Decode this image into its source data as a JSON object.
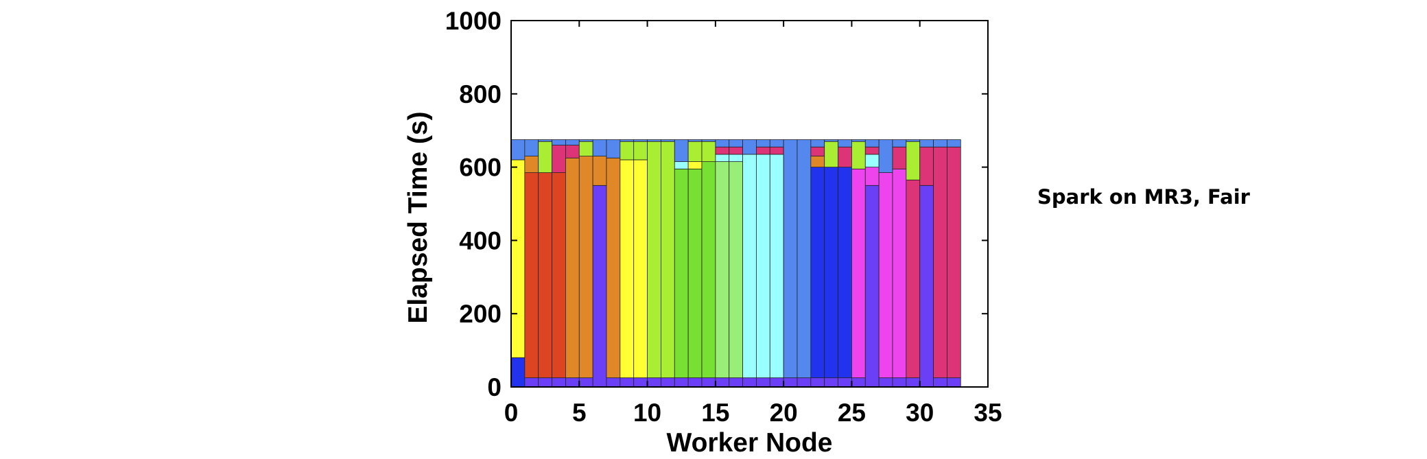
{
  "side_label": "Spark on MR3, Fair",
  "chart_data": {
    "type": "bar",
    "stacked": true,
    "xlabel": "Worker Node",
    "ylabel": "Elapsed Time (s)",
    "xlim": [
      0,
      35
    ],
    "ylim": [
      0,
      1000
    ],
    "xticks": [
      0,
      5,
      10,
      15,
      20,
      25,
      30,
      35
    ],
    "yticks": [
      0,
      200,
      400,
      600,
      800,
      1000
    ],
    "grid": false,
    "bar_width": 1,
    "colors": {
      "blue": "#2233ee",
      "violet": "#6a3ff5",
      "yellow": "#ffff33",
      "red": "#dd4422",
      "orange": "#e08828",
      "lime": "#aaee33",
      "green": "#77e033",
      "lightgreen": "#99ee77",
      "cyan": "#99ffff",
      "magenta": "#ee44ee",
      "pink": "#dd3377",
      "skyblue": "#5588ee"
    },
    "stacks": [
      {
        "x": 0.5,
        "segments": [
          {
            "c": "blue",
            "v": 80
          },
          {
            "c": "yellow",
            "v": 540
          },
          {
            "c": "skyblue",
            "v": 55
          }
        ]
      },
      {
        "x": 1.5,
        "segments": [
          {
            "c": "violet",
            "v": 25
          },
          {
            "c": "red",
            "v": 560
          },
          {
            "c": "orange",
            "v": 45
          },
          {
            "c": "skyblue",
            "v": 45
          }
        ]
      },
      {
        "x": 2.5,
        "segments": [
          {
            "c": "violet",
            "v": 25
          },
          {
            "c": "red",
            "v": 560
          },
          {
            "c": "lime",
            "v": 85
          },
          {
            "c": "skyblue",
            "v": 5
          }
        ]
      },
      {
        "x": 3.5,
        "segments": [
          {
            "c": "violet",
            "v": 25
          },
          {
            "c": "red",
            "v": 560
          },
          {
            "c": "pink",
            "v": 75
          },
          {
            "c": "skyblue",
            "v": 15
          }
        ]
      },
      {
        "x": 4.5,
        "segments": [
          {
            "c": "violet",
            "v": 25
          },
          {
            "c": "orange",
            "v": 600
          },
          {
            "c": "pink",
            "v": 35
          },
          {
            "c": "skyblue",
            "v": 15
          }
        ]
      },
      {
        "x": 5.5,
        "segments": [
          {
            "c": "violet",
            "v": 25
          },
          {
            "c": "orange",
            "v": 605
          },
          {
            "c": "lime",
            "v": 40
          },
          {
            "c": "skyblue",
            "v": 5
          }
        ]
      },
      {
        "x": 6.5,
        "segments": [
          {
            "c": "violet",
            "v": 550
          },
          {
            "c": "orange",
            "v": 80
          },
          {
            "c": "skyblue",
            "v": 45
          }
        ]
      },
      {
        "x": 7.5,
        "segments": [
          {
            "c": "violet",
            "v": 25
          },
          {
            "c": "orange",
            "v": 600
          },
          {
            "c": "skyblue",
            "v": 50
          }
        ]
      },
      {
        "x": 8.5,
        "segments": [
          {
            "c": "violet",
            "v": 25
          },
          {
            "c": "yellow",
            "v": 595
          },
          {
            "c": "lime",
            "v": 50
          },
          {
            "c": "skyblue",
            "v": 5
          }
        ]
      },
      {
        "x": 9.5,
        "segments": [
          {
            "c": "violet",
            "v": 25
          },
          {
            "c": "yellow",
            "v": 595
          },
          {
            "c": "lime",
            "v": 50
          },
          {
            "c": "skyblue",
            "v": 5
          }
        ]
      },
      {
        "x": 10.5,
        "segments": [
          {
            "c": "violet",
            "v": 25
          },
          {
            "c": "lime",
            "v": 645
          },
          {
            "c": "skyblue",
            "v": 5
          }
        ]
      },
      {
        "x": 11.5,
        "segments": [
          {
            "c": "violet",
            "v": 25
          },
          {
            "c": "lime",
            "v": 645
          },
          {
            "c": "skyblue",
            "v": 5
          }
        ]
      },
      {
        "x": 12.5,
        "segments": [
          {
            "c": "violet",
            "v": 25
          },
          {
            "c": "green",
            "v": 570
          },
          {
            "c": "cyan",
            "v": 20
          },
          {
            "c": "skyblue",
            "v": 60
          }
        ]
      },
      {
        "x": 13.5,
        "segments": [
          {
            "c": "violet",
            "v": 25
          },
          {
            "c": "green",
            "v": 570
          },
          {
            "c": "yellow",
            "v": 20
          },
          {
            "c": "lime",
            "v": 55
          },
          {
            "c": "skyblue",
            "v": 5
          }
        ]
      },
      {
        "x": 14.5,
        "segments": [
          {
            "c": "violet",
            "v": 25
          },
          {
            "c": "green",
            "v": 590
          },
          {
            "c": "lime",
            "v": 55
          },
          {
            "c": "skyblue",
            "v": 5
          }
        ]
      },
      {
        "x": 15.5,
        "segments": [
          {
            "c": "violet",
            "v": 25
          },
          {
            "c": "lightgreen",
            "v": 590
          },
          {
            "c": "cyan",
            "v": 20
          },
          {
            "c": "pink",
            "v": 20
          },
          {
            "c": "skyblue",
            "v": 20
          }
        ]
      },
      {
        "x": 16.5,
        "segments": [
          {
            "c": "violet",
            "v": 25
          },
          {
            "c": "lightgreen",
            "v": 590
          },
          {
            "c": "cyan",
            "v": 20
          },
          {
            "c": "pink",
            "v": 20
          },
          {
            "c": "skyblue",
            "v": 20
          }
        ]
      },
      {
        "x": 17.5,
        "segments": [
          {
            "c": "violet",
            "v": 25
          },
          {
            "c": "cyan",
            "v": 610
          },
          {
            "c": "skyblue",
            "v": 40
          }
        ]
      },
      {
        "x": 18.5,
        "segments": [
          {
            "c": "violet",
            "v": 25
          },
          {
            "c": "cyan",
            "v": 610
          },
          {
            "c": "pink",
            "v": 20
          },
          {
            "c": "skyblue",
            "v": 20
          }
        ]
      },
      {
        "x": 19.5,
        "segments": [
          {
            "c": "violet",
            "v": 25
          },
          {
            "c": "cyan",
            "v": 610
          },
          {
            "c": "pink",
            "v": 20
          },
          {
            "c": "skyblue",
            "v": 20
          }
        ]
      },
      {
        "x": 20.5,
        "segments": [
          {
            "c": "violet",
            "v": 25
          },
          {
            "c": "skyblue",
            "v": 650
          }
        ]
      },
      {
        "x": 21.5,
        "segments": [
          {
            "c": "violet",
            "v": 25
          },
          {
            "c": "skyblue",
            "v": 650
          }
        ]
      },
      {
        "x": 22.5,
        "segments": [
          {
            "c": "violet",
            "v": 25
          },
          {
            "c": "blue",
            "v": 575
          },
          {
            "c": "orange",
            "v": 30
          },
          {
            "c": "pink",
            "v": 25
          },
          {
            "c": "skyblue",
            "v": 20
          }
        ]
      },
      {
        "x": 23.5,
        "segments": [
          {
            "c": "violet",
            "v": 25
          },
          {
            "c": "blue",
            "v": 575
          },
          {
            "c": "lime",
            "v": 70
          },
          {
            "c": "skyblue",
            "v": 5
          }
        ]
      },
      {
        "x": 24.5,
        "segments": [
          {
            "c": "violet",
            "v": 25
          },
          {
            "c": "blue",
            "v": 575
          },
          {
            "c": "pink",
            "v": 55
          },
          {
            "c": "skyblue",
            "v": 20
          }
        ]
      },
      {
        "x": 25.5,
        "segments": [
          {
            "c": "violet",
            "v": 25
          },
          {
            "c": "magenta",
            "v": 570
          },
          {
            "c": "lime",
            "v": 75
          },
          {
            "c": "skyblue",
            "v": 5
          }
        ]
      },
      {
        "x": 26.5,
        "segments": [
          {
            "c": "violet",
            "v": 550
          },
          {
            "c": "magenta",
            "v": 50
          },
          {
            "c": "cyan",
            "v": 35
          },
          {
            "c": "pink",
            "v": 20
          },
          {
            "c": "skyblue",
            "v": 20
          }
        ]
      },
      {
        "x": 27.5,
        "segments": [
          {
            "c": "violet",
            "v": 25
          },
          {
            "c": "magenta",
            "v": 560
          },
          {
            "c": "skyblue",
            "v": 90
          }
        ]
      },
      {
        "x": 28.5,
        "segments": [
          {
            "c": "violet",
            "v": 25
          },
          {
            "c": "magenta",
            "v": 570
          },
          {
            "c": "pink",
            "v": 60
          },
          {
            "c": "skyblue",
            "v": 20
          }
        ]
      },
      {
        "x": 29.5,
        "segments": [
          {
            "c": "violet",
            "v": 25
          },
          {
            "c": "pink",
            "v": 540
          },
          {
            "c": "lime",
            "v": 105
          },
          {
            "c": "skyblue",
            "v": 5
          }
        ]
      },
      {
        "x": 30.5,
        "segments": [
          {
            "c": "violet",
            "v": 550
          },
          {
            "c": "pink",
            "v": 105
          },
          {
            "c": "skyblue",
            "v": 20
          }
        ]
      },
      {
        "x": 31.5,
        "segments": [
          {
            "c": "violet",
            "v": 25
          },
          {
            "c": "pink",
            "v": 630
          },
          {
            "c": "skyblue",
            "v": 20
          }
        ]
      },
      {
        "x": 32.5,
        "segments": [
          {
            "c": "violet",
            "v": 25
          },
          {
            "c": "pink",
            "v": 630
          },
          {
            "c": "skyblue",
            "v": 20
          }
        ]
      }
    ]
  }
}
